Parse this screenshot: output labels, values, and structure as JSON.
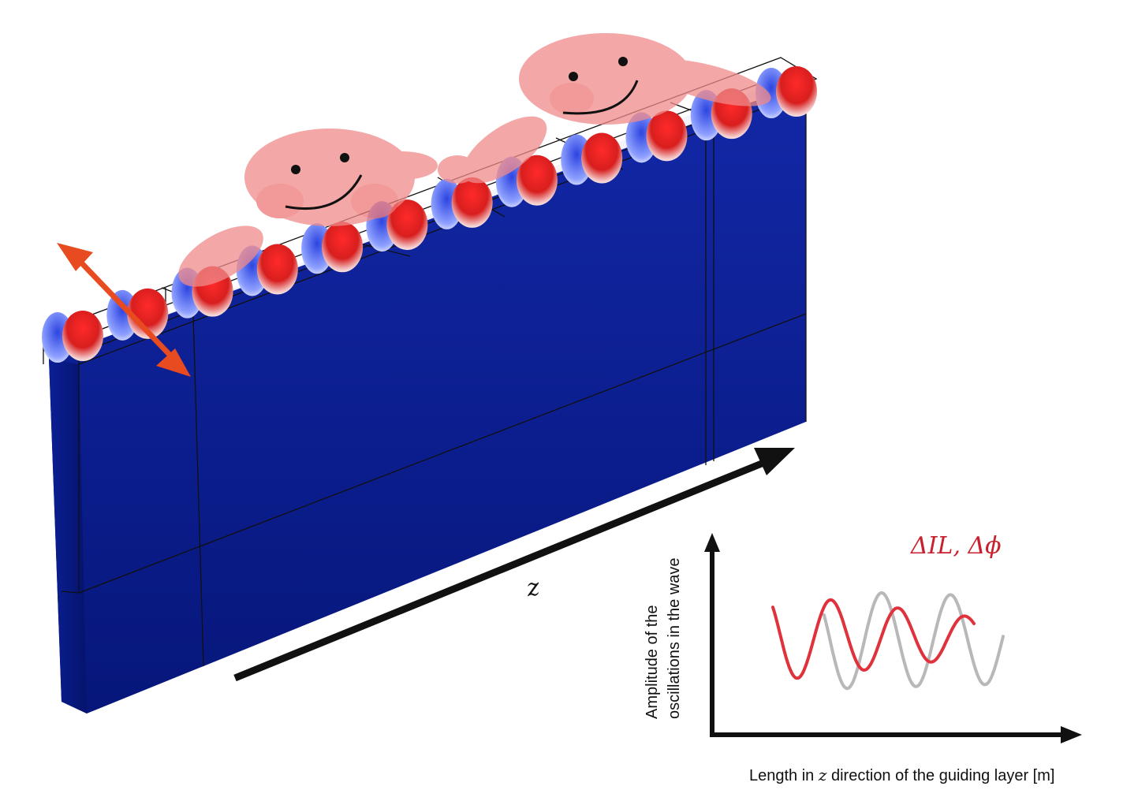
{
  "axis_label": "z",
  "inset": {
    "y_axis_label_line1": "Amplitude of the",
    "y_axis_label_line2": "oscillations in the wave",
    "x_axis_label_pre": "Length in ",
    "x_axis_label_var": "z",
    "x_axis_label_post": " direction of the guiding layer [m]",
    "annotation": "ΔIL, Δϕ"
  },
  "colors": {
    "block": "#0a1d8c",
    "field_positive": "#e02828",
    "field_negative": "#2a3fd0",
    "arrow_double": "#e84b1f",
    "annotation": "#c8202c",
    "wave_perturbed": "#e0323c",
    "wave_reference": "#b8b8b8",
    "smiley": "#f08a8a"
  },
  "icons": [
    "double-headed-arrow-icon",
    "z-arrow-icon",
    "smiley-face-icon"
  ]
}
